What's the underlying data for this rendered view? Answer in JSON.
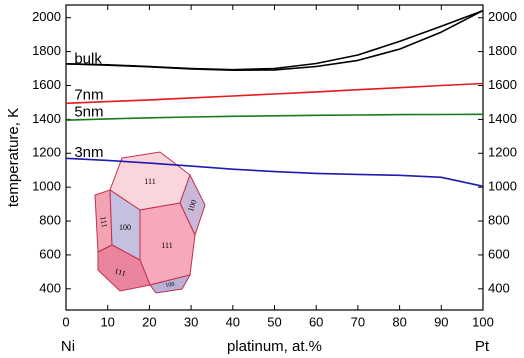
{
  "chart_data": {
    "type": "line",
    "x": [
      0,
      10,
      20,
      30,
      40,
      50,
      60,
      70,
      80,
      90,
      100
    ],
    "series": [
      {
        "name": "bulk",
        "color": "#000000",
        "values": [
          1728,
          1722,
          1712,
          1700,
          1693,
          1700,
          1730,
          1780,
          1860,
          1950,
          2042
        ]
      },
      {
        "color": "#000000",
        "values": [
          1728,
          1720,
          1710,
          1698,
          1690,
          1692,
          1712,
          1748,
          1815,
          1915,
          2042
        ]
      },
      {
        "name": "7nm",
        "color": "#e8191c",
        "values": [
          1495,
          1505,
          1515,
          1527,
          1538,
          1550,
          1562,
          1575,
          1587,
          1600,
          1612
        ]
      },
      {
        "name": "5nm",
        "color": "#1a7a1a",
        "values": [
          1395,
          1403,
          1409,
          1414,
          1418,
          1421,
          1424,
          1426,
          1428,
          1429,
          1430
        ]
      },
      {
        "name": "3nm",
        "color": "#1c1cb0",
        "values": [
          1170,
          1158,
          1142,
          1124,
          1106,
          1092,
          1081,
          1075,
          1070,
          1058,
          1005
        ]
      }
    ],
    "label_at": [
      [
        2,
        1752
      ],
      [
        2,
        1540
      ],
      [
        2,
        1440
      ],
      [
        2,
        1202
      ]
    ],
    "xlabel": "platinum, at.%",
    "ylabel": "temperature, K",
    "corner_labels": [
      "Ni",
      "Pt"
    ],
    "xlim": [
      0,
      100
    ],
    "xticks": [
      0,
      10,
      20,
      30,
      40,
      50,
      60,
      70,
      80,
      90,
      100
    ],
    "ylim": [
      275,
      2075
    ],
    "yticks": [
      400,
      600,
      800,
      1000,
      1200,
      1400,
      1600,
      1800,
      2000
    ],
    "inset_faces": [
      "111",
      "100",
      "111",
      "111",
      "100",
      "111",
      "100"
    ]
  }
}
